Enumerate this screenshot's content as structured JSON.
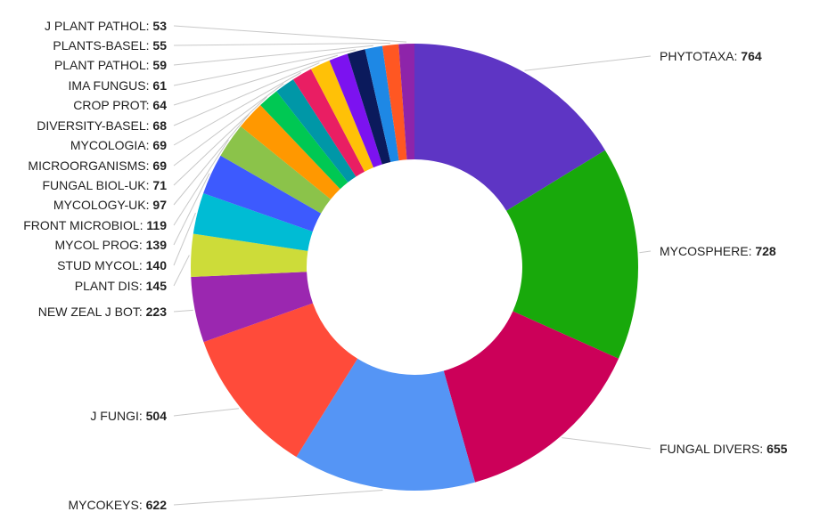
{
  "chart_data": {
    "type": "pie",
    "donut": true,
    "slices": [
      {
        "label": "PHYTOTAXA",
        "value": 764,
        "color": "#5e35c4"
      },
      {
        "label": "MYCOSPHERE",
        "value": 728,
        "color": "#18a90b"
      },
      {
        "label": "FUNGAL DIVERS",
        "value": 655,
        "color": "#cc0059"
      },
      {
        "label": "MYCOKEYS",
        "value": 622,
        "color": "#5595f5"
      },
      {
        "label": "J FUNGI",
        "value": 504,
        "color": "#ff4b3a"
      },
      {
        "label": "NEW ZEAL J BOT",
        "value": 223,
        "color": "#9b27b0"
      },
      {
        "label": "PLANT DIS",
        "value": 145,
        "color": "#cddc39"
      },
      {
        "label": "STUD MYCOL",
        "value": 140,
        "color": "#00bcd4"
      },
      {
        "label": "MYCOL PROG",
        "value": 139,
        "color": "#3d5afe"
      },
      {
        "label": "FRONT MICROBIOL",
        "value": 119,
        "color": "#8bc34a"
      },
      {
        "label": "MYCOLOGY-UK",
        "value": 97,
        "color": "#ff9800"
      },
      {
        "label": "FUNGAL BIOL-UK",
        "value": 71,
        "color": "#00c853"
      },
      {
        "label": "MICROORGANISMS",
        "value": 69,
        "color": "#0097a7"
      },
      {
        "label": "MYCOLOGIA",
        "value": 69,
        "color": "#e91e63"
      },
      {
        "label": "DIVERSITY-BASEL",
        "value": 68,
        "color": "#ffc107"
      },
      {
        "label": "CROP PROT",
        "value": 64,
        "color": "#7c12f0"
      },
      {
        "label": "IMA FUNGUS",
        "value": 61,
        "color": "#0b1a5c"
      },
      {
        "label": "PLANT PATHOL",
        "value": 59,
        "color": "#1e88e5"
      },
      {
        "label": "PLANTS-BASEL",
        "value": 55,
        "color": "#ff5722"
      },
      {
        "label": "J PLANT PATHOL",
        "value": 53,
        "color": "#8e24aa"
      }
    ]
  }
}
